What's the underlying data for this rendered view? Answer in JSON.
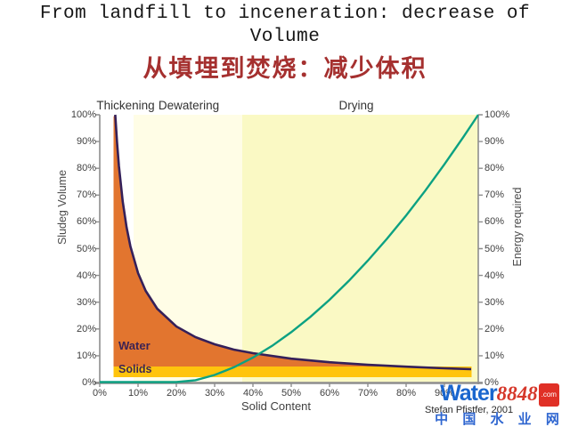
{
  "slide": {
    "title_line1": "From landfill to inceneration: decrease of",
    "title_line2": "Volume",
    "subtitle_cn": "从填埋到焚烧：减少体积"
  },
  "chart": {
    "zones": [
      {
        "label": "Thickening"
      },
      {
        "label": "Dewatering"
      },
      {
        "label": "Drying"
      }
    ],
    "left_axis": {
      "label": "Sludeg Volume",
      "ticks": [
        "100%",
        "90%",
        "80%",
        "70%",
        "60%",
        "50%",
        "40%",
        "30%",
        "20%",
        "10%",
        "0%"
      ]
    },
    "right_axis": {
      "label": "Energy required",
      "ticks": [
        "100%",
        "90%",
        "80%",
        "70%",
        "60%",
        "50%",
        "40%",
        "30%",
        "20%",
        "10%",
        "0%"
      ]
    },
    "x_axis": {
      "label": "Solid Content",
      "ticks": [
        "0%",
        "10%",
        "20%",
        "30%",
        "40%",
        "50%",
        "60%",
        "70%",
        "80%",
        "90%"
      ]
    },
    "area_labels": {
      "water": "Water",
      "solids": "Solids"
    },
    "attribution": "Stefan Pfistfer, 2001",
    "colors": {
      "water_area": "#e2752f",
      "solids_band": "#ffc40d",
      "volume_line": "#352059",
      "energy_line": "#0ca182",
      "zone_thickening": "#ffffff",
      "zone_dewatering": "#fffde6",
      "zone_drying": "#faf9c4",
      "axis": "#8e8e8e",
      "subtitle_red": "#a5302f"
    }
  },
  "watermark": {
    "brand": "Water",
    "number": "8848",
    "tld": ".com",
    "cn": "中 国 水 业 网"
  },
  "chart_data": {
    "type": "area",
    "title": "From landfill to inceneration: decrease of Volume",
    "xlabel": "Solid Content",
    "ylabel_left": "Sludeg Volume",
    "ylabel_right": "Energy required",
    "xlim": [
      0,
      100
    ],
    "ylim_left": [
      0,
      100
    ],
    "ylim_right": [
      0,
      100
    ],
    "grid": false,
    "zones": [
      {
        "name": "Thickening",
        "x_range": [
          0,
          9
        ]
      },
      {
        "name": "Dewatering",
        "x_range": [
          9,
          37
        ]
      },
      {
        "name": "Drying",
        "x_range": [
          37,
          100
        ]
      }
    ],
    "series": [
      {
        "name": "Sludge volume (water + solids)",
        "axis": "left",
        "unit": "%",
        "x": [
          4,
          4.5,
          5,
          6,
          7,
          8,
          10,
          12,
          15,
          20,
          25,
          30,
          35,
          40,
          50,
          60,
          70,
          80,
          90,
          97
        ],
        "y": [
          100,
          90,
          81,
          68,
          58,
          51,
          41,
          34,
          28,
          21,
          17,
          14,
          12.3,
          11,
          9,
          7.6,
          6.6,
          5.9,
          5.3,
          5
        ]
      },
      {
        "name": "Energy required",
        "axis": "right",
        "unit": "%",
        "x": [
          0,
          10,
          20,
          25,
          30,
          35,
          40,
          45,
          50,
          55,
          60,
          65,
          70,
          75,
          80,
          85,
          90,
          95,
          99
        ],
        "y": [
          0,
          0,
          0,
          1,
          3,
          6,
          9,
          14,
          19,
          25,
          31,
          38,
          46,
          54,
          62,
          72,
          81,
          92,
          100
        ]
      },
      {
        "name": "Solids (constant band)",
        "axis": "left",
        "unit": "%",
        "x": [
          4,
          97
        ],
        "y": [
          6,
          6
        ]
      }
    ]
  }
}
